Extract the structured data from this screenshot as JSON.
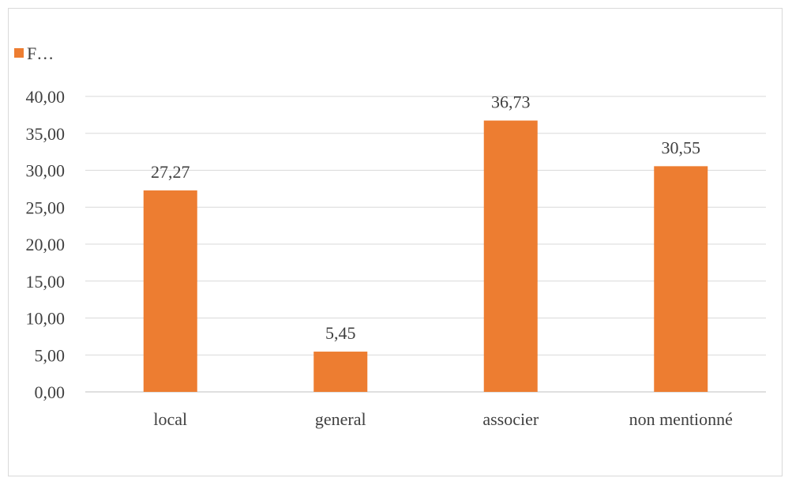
{
  "chart_data": {
    "type": "bar",
    "categories": [
      "local",
      "general",
      "associer",
      "non mentionné"
    ],
    "series": [
      {
        "name": "F…",
        "values": [
          27.27,
          5.45,
          36.73,
          30.55
        ]
      }
    ],
    "data_labels": [
      "27,27",
      "5,45",
      "36,73",
      "30,55"
    ],
    "y_tick_labels": [
      "0,00",
      "5,00",
      "10,00",
      "15,00",
      "20,00",
      "25,00",
      "30,00",
      "35,00",
      "40,00"
    ],
    "y_ticks": [
      0,
      5,
      10,
      15,
      20,
      25,
      30,
      35,
      40
    ],
    "ylim": [
      0,
      40
    ],
    "title": "",
    "xlabel": "",
    "ylabel": "",
    "grid": true,
    "legend_position": "top-left",
    "colors": {
      "bar": "#ED7D31",
      "grid": "#d9d9d9",
      "text": "#404040"
    }
  }
}
